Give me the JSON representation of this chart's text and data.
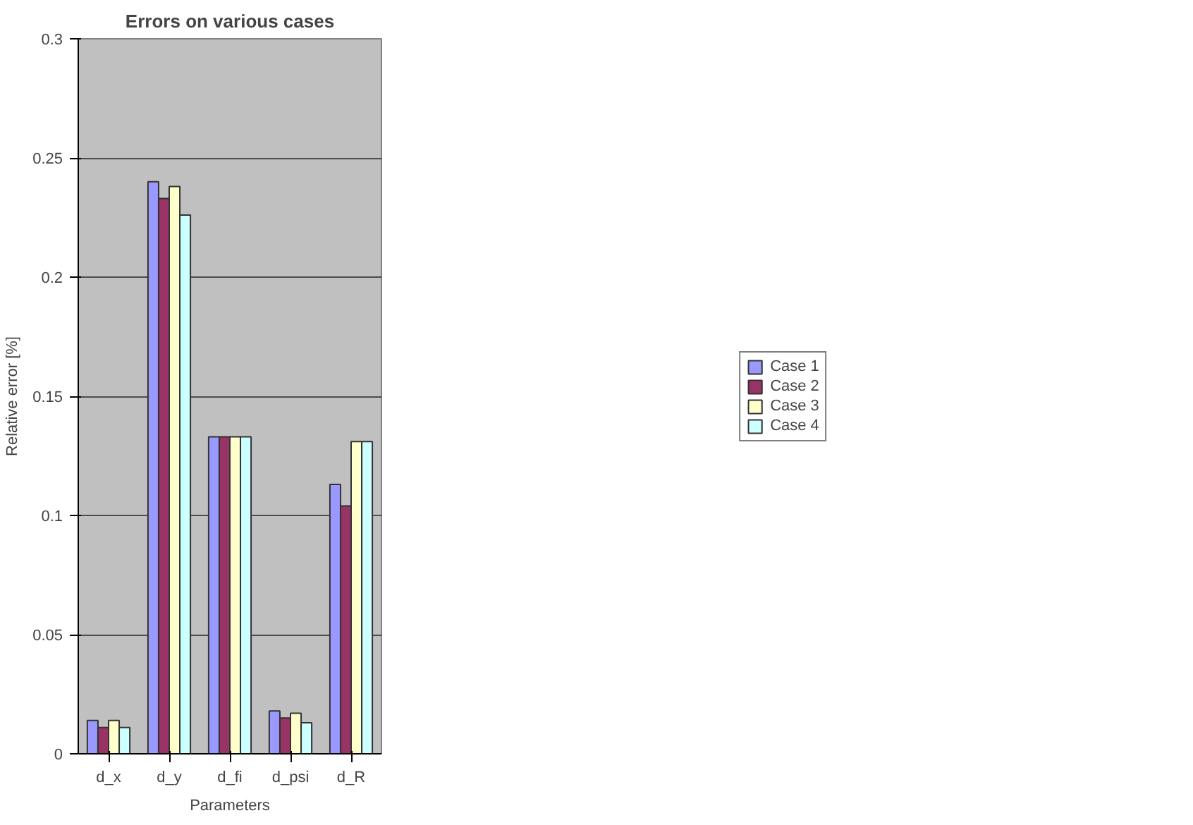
{
  "chart_data": {
    "type": "bar",
    "title": "Errors on various cases",
    "xlabel": "Parameters",
    "ylabel": "Relative error [%]",
    "categories": [
      "d_x",
      "d_y",
      "d_fi",
      "d_psi",
      "d_R"
    ],
    "series": [
      {
        "name": "Case 1",
        "color": "#9999ff",
        "values": [
          0.014,
          0.24,
          0.133,
          0.018,
          0.113
        ]
      },
      {
        "name": "Case 2",
        "color": "#993366",
        "values": [
          0.011,
          0.233,
          0.133,
          0.015,
          0.104
        ]
      },
      {
        "name": "Case 3",
        "color": "#ffffcc",
        "values": [
          0.014,
          0.238,
          0.133,
          0.017,
          0.131
        ]
      },
      {
        "name": "Case 4",
        "color": "#ccffff",
        "values": [
          0.011,
          0.226,
          0.133,
          0.013,
          0.131
        ]
      }
    ],
    "ylim": [
      0,
      0.3
    ],
    "yticks": [
      0,
      0.05,
      0.1,
      0.15,
      0.2,
      0.25,
      0.3
    ],
    "grid": "y",
    "legend": "right"
  }
}
